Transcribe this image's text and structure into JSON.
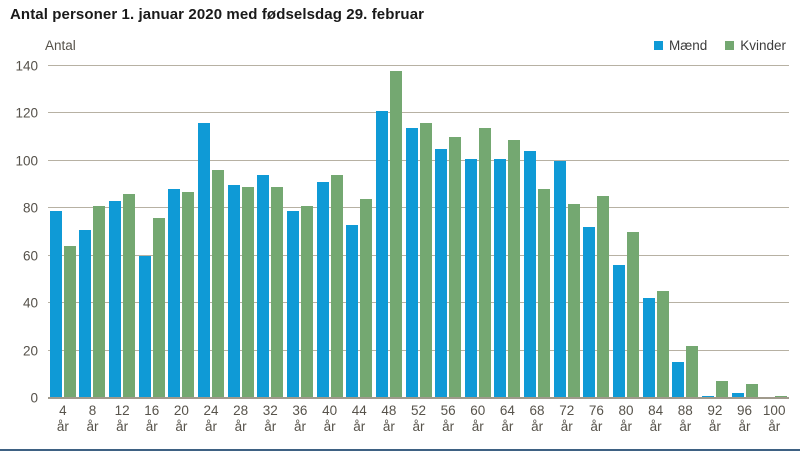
{
  "title": "Antal personer 1. januar 2020 med fødselsdag 29. februar",
  "chart_data": {
    "type": "bar",
    "title": "Antal personer 1. januar 2020 med fødselsdag 29. februar",
    "ylabel": "Antal",
    "xlabel": "",
    "categories": [
      "4 år",
      "8 år",
      "12 år",
      "16 år",
      "20 år",
      "24 år",
      "28 år",
      "32 år",
      "36 år",
      "40 år",
      "44 år",
      "48 år",
      "52 år",
      "56 år",
      "60 år",
      "64 år",
      "68 år",
      "72 år",
      "76 år",
      "80 år",
      "84 år",
      "88 år",
      "92 år",
      "96 år",
      "100 år"
    ],
    "series": [
      {
        "name": "Mænd",
        "color": "#0f9ad6",
        "values": [
          79,
          71,
          83,
          60,
          88,
          116,
          90,
          94,
          79,
          91,
          73,
          121,
          114,
          105,
          101,
          101,
          104,
          100,
          72,
          56,
          42,
          15,
          1,
          2,
          0
        ]
      },
      {
        "name": "Kvinder",
        "color": "#74a871",
        "values": [
          64,
          81,
          86,
          76,
          87,
          96,
          89,
          89,
          81,
          94,
          84,
          138,
          116,
          110,
          114,
          109,
          88,
          82,
          85,
          70,
          45,
          22,
          7,
          6,
          1
        ]
      }
    ],
    "ylim": [
      0,
      140
    ],
    "yticks": [
      0,
      20,
      40,
      60,
      80,
      100,
      120,
      140
    ],
    "grid": true,
    "legend_position": "top-right",
    "colors": {
      "background": "#ffffff",
      "gridline": "#b7b1a3",
      "axis_line": "#a09a8c",
      "tick_text": "#55514a",
      "title_text": "#1a1a1a",
      "legend_text": "#3c3c3c",
      "bottom_rule": "#3e6183"
    }
  }
}
